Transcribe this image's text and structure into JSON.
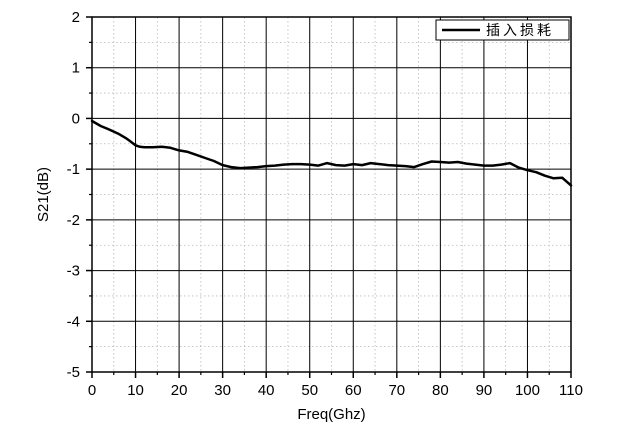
{
  "chart_data": {
    "type": "line",
    "xlabel": "Freq(Ghz)",
    "ylabel": "S21(dB)",
    "xlim": [
      0,
      110
    ],
    "ylim": [
      -5,
      2
    ],
    "xticks": [
      0,
      10,
      20,
      30,
      40,
      50,
      60,
      70,
      80,
      90,
      100,
      110
    ],
    "yticks": [
      2,
      1,
      0,
      -1,
      -2,
      -3,
      -4,
      -5
    ],
    "xtick_labels": [
      "0",
      "10",
      "20",
      "30",
      "40",
      "50",
      "60",
      "70",
      "80",
      "90",
      "100",
      "110"
    ],
    "ytick_labels": [
      "2",
      "1",
      "0",
      "-1",
      "-2",
      "-3",
      "-4",
      "-5"
    ],
    "grid": {
      "major": true,
      "minor": true,
      "major_style": "solid",
      "minor_style": "dotted",
      "x_minor_step": 5,
      "y_minor_step": 0.5
    },
    "legend": {
      "position": "top-right",
      "show": true
    },
    "colors": {
      "line": "#000000",
      "major_grid": "#000000",
      "minor_grid": "#b8b8b8"
    },
    "series": [
      {
        "name": "插入损耗",
        "x": [
          0,
          2,
          4,
          6,
          8,
          10,
          11,
          12,
          14,
          16,
          18,
          20,
          22,
          24,
          26,
          28,
          30,
          32,
          34,
          36,
          38,
          40,
          42,
          44,
          46,
          48,
          50,
          52,
          54,
          56,
          58,
          60,
          62,
          64,
          66,
          68,
          70,
          72,
          74,
          76,
          78,
          80,
          82,
          84,
          86,
          88,
          90,
          92,
          94,
          96,
          98,
          100,
          102,
          104,
          106,
          108,
          110
        ],
        "y": [
          -0.05,
          -0.15,
          -0.22,
          -0.3,
          -0.4,
          -0.53,
          -0.56,
          -0.57,
          -0.57,
          -0.56,
          -0.58,
          -0.63,
          -0.66,
          -0.72,
          -0.78,
          -0.84,
          -0.92,
          -0.96,
          -0.98,
          -0.97,
          -0.96,
          -0.94,
          -0.93,
          -0.91,
          -0.9,
          -0.9,
          -0.91,
          -0.93,
          -0.88,
          -0.92,
          -0.93,
          -0.9,
          -0.92,
          -0.88,
          -0.9,
          -0.92,
          -0.93,
          -0.94,
          -0.96,
          -0.9,
          -0.85,
          -0.86,
          -0.87,
          -0.86,
          -0.89,
          -0.91,
          -0.93,
          -0.93,
          -0.91,
          -0.88,
          -0.97,
          -1.02,
          -1.06,
          -1.13,
          -1.18,
          -1.17,
          -1.32
        ]
      }
    ]
  }
}
